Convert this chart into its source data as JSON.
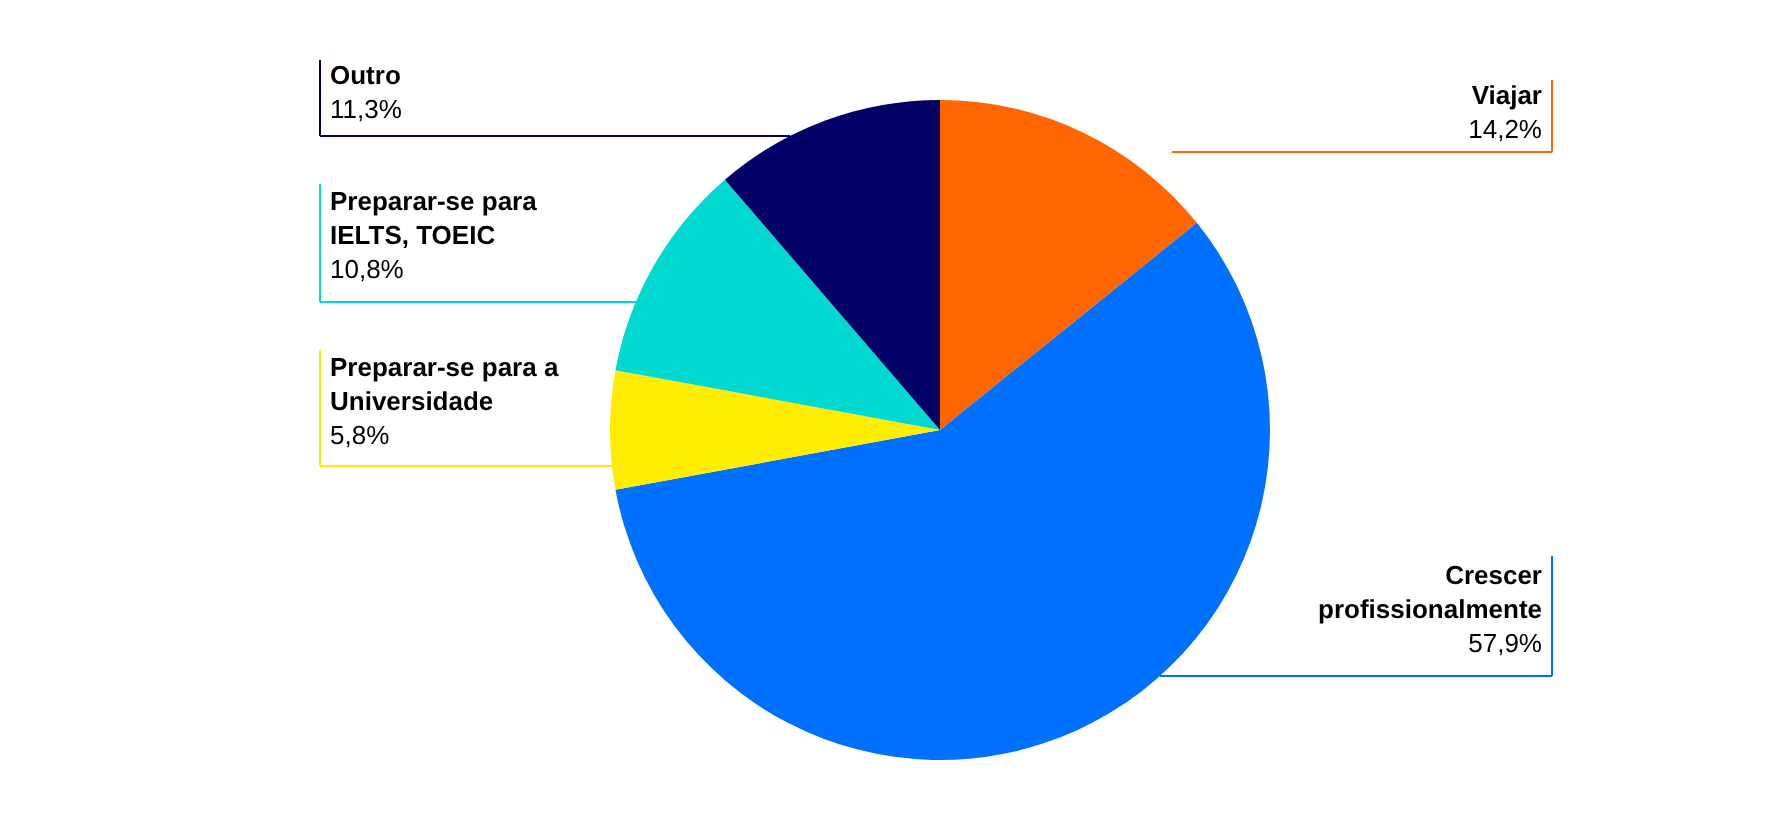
{
  "chart_data": {
    "type": "pie",
    "categories": [
      "Viajar",
      "Crescer profissionalmente",
      "Preparar-se para a Universidade",
      "Preparar-se para IELTS, TOEIC",
      "Outro"
    ],
    "values": [
      14.2,
      57.9,
      5.8,
      10.8,
      11.3
    ],
    "colors": [
      "#ff6600",
      "#0070ff",
      "#ffee00",
      "#00d8d0",
      "#000066"
    ],
    "value_labels": [
      "14,2%",
      "57,9%",
      "5,8%",
      "10,8%",
      "11,3%"
    ]
  }
}
